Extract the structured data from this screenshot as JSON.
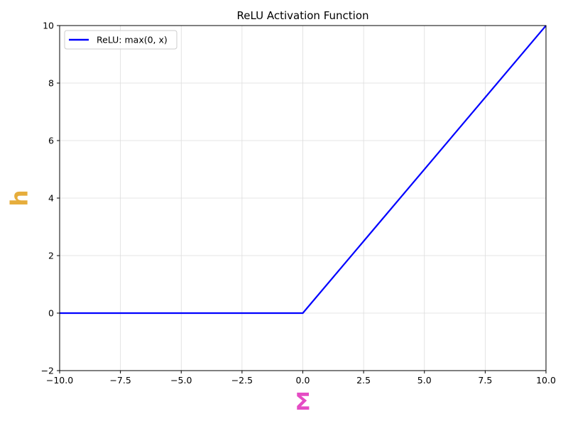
{
  "chart_data": {
    "type": "line",
    "title": "ReLU Activation Function",
    "xlabel": "Σ",
    "ylabel": "h",
    "xlabel_color": "#e54cc4",
    "ylabel_color": "#e6ad3c",
    "xlim": [
      -10,
      10
    ],
    "ylim": [
      -2,
      10
    ],
    "xticks": [
      -10,
      -7.5,
      -5,
      -2.5,
      0,
      2.5,
      5,
      7.5,
      10
    ],
    "xtick_labels": [
      "−10.0",
      "−7.5",
      "−5.0",
      "−2.5",
      "0.0",
      "2.5",
      "5.0",
      "7.5",
      "10.0"
    ],
    "yticks": [
      -2,
      0,
      2,
      4,
      6,
      8,
      10
    ],
    "ytick_labels": [
      "−2",
      "0",
      "2",
      "4",
      "6",
      "8",
      "10"
    ],
    "grid": true,
    "legend_position": "upper-left",
    "series": [
      {
        "name": "ReLU: max(0, x)",
        "color": "#0000ff",
        "x": [
          -10,
          0,
          10
        ],
        "y": [
          0,
          0,
          10
        ]
      }
    ]
  }
}
